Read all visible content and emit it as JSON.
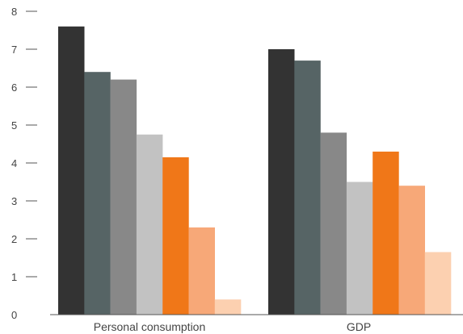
{
  "chart_data": {
    "type": "bar",
    "title": "",
    "xlabel": "",
    "ylabel": "",
    "categories": [
      "Personal consumption",
      "GDP"
    ],
    "series": [
      {
        "values": [
          7.6,
          7.0
        ],
        "color": "#333333"
      },
      {
        "values": [
          6.4,
          6.7
        ],
        "color": "#566465"
      },
      {
        "values": [
          6.2,
          4.8
        ],
        "color": "#888888"
      },
      {
        "values": [
          4.75,
          3.5
        ],
        "color": "#c2c2c2"
      },
      {
        "values": [
          4.15,
          4.3
        ],
        "color": "#f07718"
      },
      {
        "values": [
          2.3,
          3.4
        ],
        "color": "#f7a878"
      },
      {
        "values": [
          0.4,
          1.65
        ],
        "color": "#fcd0b0"
      }
    ],
    "ylim": [
      0,
      8
    ],
    "yticks": [
      "0",
      "1",
      "2",
      "3",
      "4",
      "5",
      "6",
      "7",
      "8"
    ],
    "grid": false,
    "legend": "none"
  }
}
